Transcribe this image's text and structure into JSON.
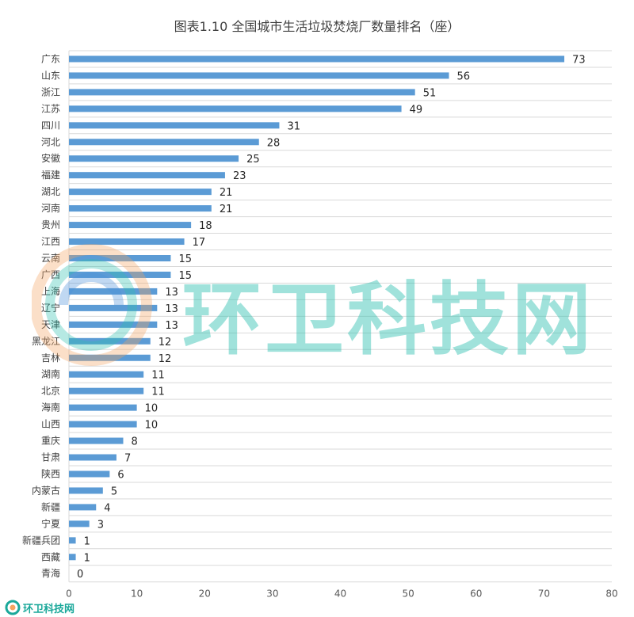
{
  "chart_data": {
    "type": "bar",
    "orientation": "horizontal",
    "title": "图表1.10 全国城市生活垃圾焚烧厂数量排名（座）",
    "categories": [
      "广东",
      "山东",
      "浙江",
      "江苏",
      "四川",
      "河北",
      "安徽",
      "福建",
      "湖北",
      "河南",
      "贵州",
      "江西",
      "云南",
      "广西",
      "上海",
      "辽宁",
      "天津",
      "黑龙江",
      "吉林",
      "湖南",
      "北京",
      "海南",
      "山西",
      "重庆",
      "甘肃",
      "陕西",
      "内蒙古",
      "新疆",
      "宁夏",
      "新疆兵团",
      "西藏",
      "青海"
    ],
    "values": [
      73,
      56,
      51,
      49,
      31,
      28,
      25,
      23,
      21,
      21,
      18,
      17,
      15,
      15,
      13,
      13,
      13,
      12,
      12,
      11,
      11,
      10,
      10,
      8,
      7,
      6,
      5,
      4,
      3,
      1,
      1,
      0
    ],
    "xlim": [
      0,
      80
    ],
    "xticks": [
      0,
      10,
      20,
      30,
      40,
      50,
      60,
      70,
      80
    ],
    "grid": true,
    "legend": "none",
    "bar_color": "#5b9bd5"
  },
  "watermark": {
    "text": "环卫科技网",
    "color": "#2fbfb0"
  },
  "footer": {
    "text": "环卫科技网"
  }
}
